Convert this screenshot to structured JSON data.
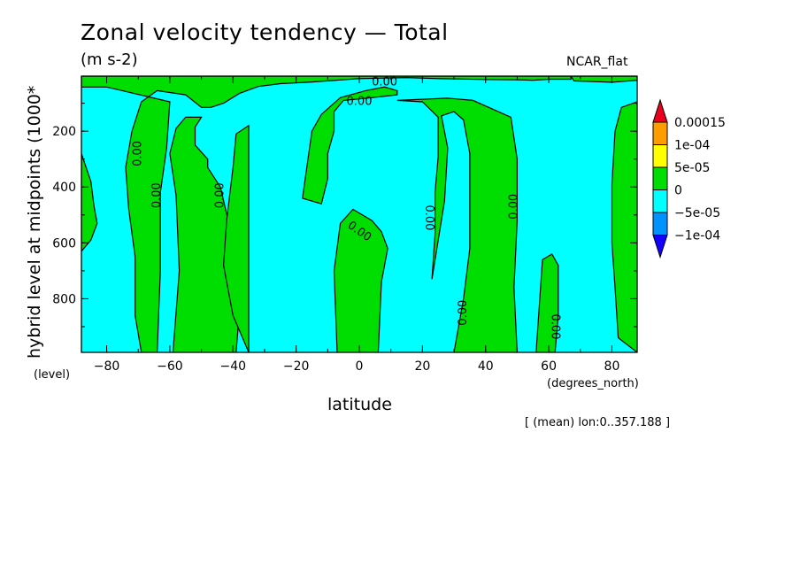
{
  "chart_data": {
    "type": "heatmap",
    "title": "Zonal velocity tendency — Total",
    "units": "(m s-2)",
    "colormap_name": "NCAR_flat",
    "xlabel": "latitude",
    "xunits": "(degrees_north)",
    "ylabel": "hybrid level at midpoints (1000*",
    "yunits": "(level)",
    "footnote": "[ (mean) lon:0..357.188 ]",
    "x_ticks": [
      -80,
      -60,
      -40,
      -20,
      0,
      20,
      40,
      60,
      80
    ],
    "x_tick_labels": [
      "−80",
      "−60",
      "−40",
      "−20",
      "0",
      "20",
      "40",
      "60",
      "80"
    ],
    "y_ticks": [
      200,
      400,
      600,
      800
    ],
    "y_tick_labels": [
      "200",
      "400",
      "600",
      "800"
    ],
    "xlim": [
      -88,
      88
    ],
    "ylim": [
      992,
      3
    ],
    "contour_level": 0,
    "contour_labels": [
      {
        "text": "0.00",
        "lat": -70,
        "lev": 280,
        "angle": -90
      },
      {
        "text": "0.00",
        "lat": -64,
        "lev": 430,
        "angle": -90
      },
      {
        "text": "0.00",
        "lat": -44,
        "lev": 430,
        "angle": -90
      },
      {
        "text": "0.00",
        "lat": 8,
        "lev": 25,
        "angle": 0
      },
      {
        "text": "0.00",
        "lat": 0,
        "lev": 95,
        "angle": 0
      },
      {
        "text": "0.00",
        "lat": 0,
        "lev": 560,
        "angle": 35
      },
      {
        "text": "0.00",
        "lat": 22,
        "lev": 510,
        "angle": 90
      },
      {
        "text": "0.00",
        "lat": 49,
        "lev": 470,
        "angle": -90
      },
      {
        "text": "0.00",
        "lat": 33,
        "lev": 850,
        "angle": -90
      },
      {
        "text": "0.00",
        "lat": 62,
        "lev": 900,
        "angle": 90
      }
    ],
    "positive_regions": [
      [
        [
          -88,
          280
        ],
        [
          -85,
          380
        ],
        [
          -84,
          470
        ],
        [
          -83,
          530
        ],
        [
          -85,
          590
        ],
        [
          -88,
          630
        ]
      ],
      [
        [
          -69,
          992
        ],
        [
          -71,
          860
        ],
        [
          -71,
          650
        ],
        [
          -73,
          480
        ],
        [
          -74,
          330
        ],
        [
          -72,
          200
        ],
        [
          -69,
          95
        ],
        [
          -64,
          55
        ],
        [
          -55,
          70
        ],
        [
          -50,
          115
        ],
        [
          -47,
          115
        ],
        [
          -43,
          100
        ],
        [
          -38,
          65
        ],
        [
          -32,
          40
        ],
        [
          -25,
          30
        ],
        [
          -15,
          24
        ],
        [
          0,
          12
        ],
        [
          15,
          8
        ],
        [
          25,
          12
        ],
        [
          40,
          15
        ],
        [
          50,
          16
        ],
        [
          55,
          18
        ],
        [
          60,
          14
        ],
        [
          67,
          14
        ],
        [
          67,
          3
        ],
        [
          -88,
          3
        ],
        [
          -88,
          42
        ],
        [
          -80,
          42
        ],
        [
          -60,
          95
        ],
        [
          -61,
          260
        ],
        [
          -63,
          420
        ],
        [
          -63,
          700
        ],
        [
          -64,
          992
        ]
      ],
      [
        [
          -59,
          992
        ],
        [
          -57,
          700
        ],
        [
          -58,
          430
        ],
        [
          -60,
          280
        ],
        [
          -58,
          190
        ],
        [
          -55,
          150
        ],
        [
          -50,
          150
        ],
        [
          -52,
          185
        ],
        [
          -52,
          250
        ],
        [
          -48,
          300
        ],
        [
          -48,
          330
        ],
        [
          -44,
          400
        ],
        [
          -39,
          640
        ],
        [
          -38,
          850
        ],
        [
          -39,
          992
        ]
      ],
      [
        [
          -35,
          992
        ],
        [
          -40,
          860
        ],
        [
          -43,
          680
        ],
        [
          -42,
          520
        ],
        [
          -40,
          330
        ],
        [
          -39,
          210
        ],
        [
          -35,
          180
        ]
      ],
      [
        [
          -18,
          440
        ],
        [
          -16,
          280
        ],
        [
          -15,
          200
        ],
        [
          -12,
          140
        ],
        [
          -6,
          80
        ],
        [
          2,
          55
        ],
        [
          8,
          42
        ],
        [
          12,
          55
        ],
        [
          12,
          70
        ],
        [
          4,
          80
        ],
        [
          -5,
          90
        ],
        [
          -8,
          130
        ],
        [
          -8,
          200
        ],
        [
          -10,
          280
        ],
        [
          -10,
          370
        ],
        [
          -12,
          460
        ]
      ],
      [
        [
          -7,
          992
        ],
        [
          -8,
          700
        ],
        [
          -6,
          530
        ],
        [
          -2,
          480
        ],
        [
          4,
          520
        ],
        [
          7,
          560
        ],
        [
          9,
          620
        ],
        [
          7,
          740
        ],
        [
          6,
          992
        ]
      ],
      [
        [
          23,
          730
        ],
        [
          24,
          570
        ],
        [
          24,
          420
        ],
        [
          25,
          290
        ],
        [
          25,
          150
        ],
        [
          20,
          95
        ],
        [
          12,
          90
        ],
        [
          28,
          82
        ],
        [
          36,
          90
        ],
        [
          48,
          150
        ],
        [
          50,
          300
        ],
        [
          50,
          520
        ],
        [
          49,
          760
        ],
        [
          50,
          992
        ],
        [
          30,
          992
        ],
        [
          33,
          800
        ],
        [
          35,
          620
        ],
        [
          35,
          430
        ],
        [
          35,
          280
        ],
        [
          33,
          160
        ],
        [
          30,
          130
        ],
        [
          26,
          145
        ],
        [
          28,
          260
        ],
        [
          27,
          450
        ],
        [
          25,
          590
        ]
      ],
      [
        [
          56,
          992
        ],
        [
          58,
          660
        ],
        [
          61,
          640
        ],
        [
          63,
          680
        ],
        [
          63,
          860
        ],
        [
          62,
          992
        ]
      ],
      [
        [
          88,
          992
        ],
        [
          82,
          940
        ],
        [
          81,
          760
        ],
        [
          80,
          600
        ],
        [
          80,
          390
        ],
        [
          81,
          200
        ],
        [
          83,
          115
        ],
        [
          88,
          95
        ]
      ],
      [
        [
          88,
          3
        ],
        [
          67,
          3
        ],
        [
          68,
          20
        ],
        [
          80,
          25
        ],
        [
          88,
          18
        ]
      ]
    ],
    "colorbar": {
      "levels": [
        "0.00015",
        "1e-04",
        "5e-05",
        "0",
        "−5e-05",
        "−1e-04"
      ],
      "colors": [
        "#e8001c",
        "#ff9c00",
        "#ffff00",
        "#00dd00",
        "#00ffff",
        "#0093ff",
        "#1400ff"
      ]
    }
  }
}
